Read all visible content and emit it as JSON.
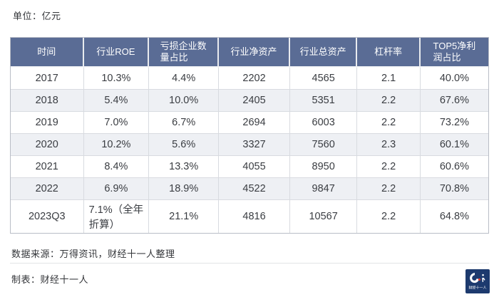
{
  "header": {
    "unit_label": "单位：亿元"
  },
  "chart_data": {
    "type": "table",
    "unit": "亿元",
    "columns": [
      "时间",
      "行业ROE",
      "亏损企业数\n量占比",
      "行业净资产",
      "行业总资产",
      "杠杆率",
      "TOP5净利\n润占比"
    ],
    "rows": [
      [
        "2017",
        "10.3%",
        "4.4%",
        "2202",
        "4565",
        "2.1",
        "40.0%"
      ],
      [
        "2018",
        "5.4%",
        "10.0%",
        "2405",
        "5351",
        "2.2",
        "67.6%"
      ],
      [
        "2019",
        "7.0%",
        "6.7%",
        "2694",
        "6003",
        "2.2",
        "73.2%"
      ],
      [
        "2020",
        "10.2%",
        "5.6%",
        "3327",
        "7560",
        "2.3",
        "60.1%"
      ],
      [
        "2021",
        "8.4%",
        "13.3%",
        "4055",
        "8950",
        "2.2",
        "60.6%"
      ],
      [
        "2022",
        "6.9%",
        "18.9%",
        "4522",
        "9847",
        "2.2",
        "70.8%"
      ],
      [
        "2023Q3",
        "7.1%（全年\n折算）",
        "21.1%",
        "4816",
        "10567",
        "2.2",
        "64.8%"
      ]
    ],
    "zebra_row_indices": [
      1,
      3,
      5
    ],
    "column_widths_pct": [
      15.3,
      13.7,
      14.6,
      14.9,
      14.1,
      13.2,
      14.2
    ]
  },
  "footer": {
    "source_note": "数据来源：万得资讯，财经十一人整理",
    "credit_note": "制表：财经十一人",
    "logo_text": "财经十一人"
  },
  "colors": {
    "header_bg": "#5a6c95",
    "zebra_bg": "#eef0f4",
    "logo_bg": "#1d3a6e",
    "logo_accent": "#e0392e"
  }
}
